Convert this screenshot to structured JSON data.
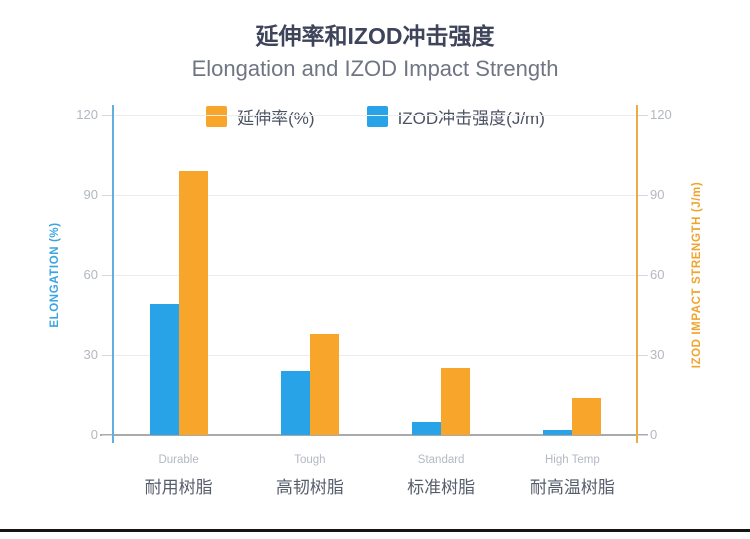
{
  "header": {
    "title_zh": "延伸率和IZOD冲击强度",
    "title_en": "Elongation and IZOD Impact Strength"
  },
  "chart_data": {
    "type": "bar",
    "title": "延伸率和IZOD冲击强度",
    "subtitle": "Elongation and IZOD Impact Strength",
    "categories": [
      {
        "en": "Durable",
        "zh": "耐用树脂"
      },
      {
        "en": "Tough",
        "zh": "高韧树脂"
      },
      {
        "en": "Standard",
        "zh": "标准树脂"
      },
      {
        "en": "High Temp",
        "zh": "耐高温树脂"
      }
    ],
    "series": [
      {
        "name": "IZOD冲击强度(J/m)",
        "color": "#29A3E8",
        "values": [
          49,
          24,
          5,
          2
        ]
      },
      {
        "name": "延伸率(%)",
        "color": "#F7A52B",
        "values": [
          99,
          38,
          25,
          14
        ]
      }
    ],
    "legend": [
      {
        "label": "延伸率(%)",
        "color": "#F7A52B"
      },
      {
        "label": "IZOD冲击强度(J/m)",
        "color": "#29A3E8"
      }
    ],
    "legend_position": "top-center",
    "grid": true,
    "yticks": [
      0,
      30,
      60,
      90,
      120
    ],
    "ylim": [
      0,
      120
    ],
    "left_axis": {
      "label": "ELONGATION (%)",
      "color": "#3AA5E2",
      "line_color": "#5FB0DF"
    },
    "right_axis": {
      "label": "IZOD IMPACT STRENGTH (J/m)",
      "color": "#F0A42C",
      "line_color": "#EBAB45"
    }
  }
}
